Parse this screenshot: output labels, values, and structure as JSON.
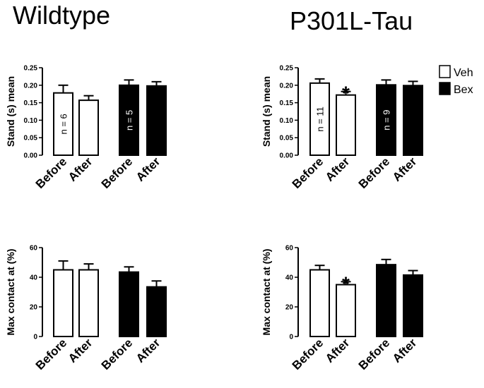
{
  "titles": {
    "left": "Wildtype",
    "right": "P301L-Tau"
  },
  "legend": [
    {
      "label": "Veh",
      "fill": "#ffffff"
    },
    {
      "label": "Bex",
      "fill": "#000000"
    }
  ],
  "colors": {
    "veh": "#ffffff",
    "bex": "#000000",
    "stroke": "#000000"
  },
  "chart_data": [
    {
      "type": "bar",
      "panel": "Wildtype",
      "ylabel": "Stand (s) mean",
      "ylim": [
        0,
        0.25
      ],
      "yticks": [
        "0.00",
        "0.05",
        "0.10",
        "0.15",
        "0.20",
        "0.25"
      ],
      "categories": [
        "Before",
        "After",
        "Before",
        "After"
      ],
      "groups": [
        "Veh",
        "Veh",
        "Bex",
        "Bex"
      ],
      "values": [
        0.178,
        0.157,
        0.2,
        0.198
      ],
      "errors": [
        0.022,
        0.013,
        0.015,
        0.012
      ],
      "n_labels": [
        {
          "bar": 0,
          "text": "n = 6"
        },
        {
          "bar": 2,
          "text": "n = 5"
        }
      ],
      "significance": []
    },
    {
      "type": "bar",
      "panel": "P301L-Tau",
      "ylabel": "Stand (s) mean",
      "ylim": [
        0,
        0.25
      ],
      "yticks": [
        "0.00",
        "0.05",
        "0.10",
        "0.15",
        "0.20",
        "0.25"
      ],
      "categories": [
        "Before",
        "After",
        "Before",
        "After"
      ],
      "groups": [
        "Veh",
        "Veh",
        "Bex",
        "Bex"
      ],
      "values": [
        0.206,
        0.172,
        0.201,
        0.199
      ],
      "errors": [
        0.012,
        0.01,
        0.014,
        0.012
      ],
      "n_labels": [
        {
          "bar": 0,
          "text": "n = 11"
        },
        {
          "bar": 2,
          "text": "n = 9"
        }
      ],
      "significance": [
        {
          "bar": 1,
          "text": "*"
        }
      ]
    },
    {
      "type": "bar",
      "panel": "Wildtype",
      "ylabel": "Max contact at (%)",
      "ylim": [
        0,
        60
      ],
      "yticks": [
        "0",
        "20",
        "40",
        "60"
      ],
      "categories": [
        "Before",
        "After",
        "Before",
        "After"
      ],
      "groups": [
        "Veh",
        "Veh",
        "Bex",
        "Bex"
      ],
      "values": [
        45,
        45,
        43.5,
        33.5
      ],
      "errors": [
        6,
        4,
        3.5,
        4
      ],
      "n_labels": [],
      "significance": []
    },
    {
      "type": "bar",
      "panel": "P301L-Tau",
      "ylabel": "Max contact at (%)",
      "ylim": [
        0,
        60
      ],
      "yticks": [
        "0",
        "20",
        "40",
        "60"
      ],
      "categories": [
        "Before",
        "After",
        "Before",
        "After"
      ],
      "groups": [
        "Veh",
        "Veh",
        "Bex",
        "Bex"
      ],
      "values": [
        45,
        35,
        48.5,
        41.5
      ],
      "errors": [
        3,
        2,
        3.5,
        3
      ],
      "n_labels": [],
      "significance": [
        {
          "bar": 1,
          "text": "*"
        }
      ]
    }
  ]
}
